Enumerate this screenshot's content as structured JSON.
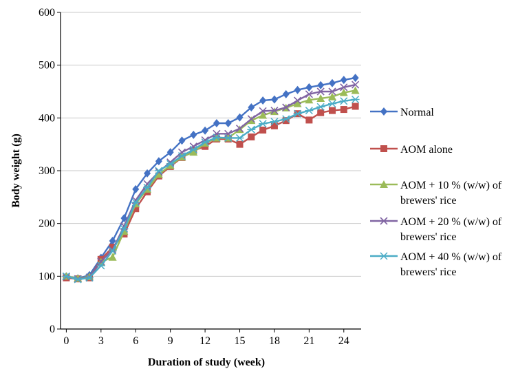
{
  "chart_data": {
    "type": "line",
    "title": "",
    "xlabel": "Duration of study (week)",
    "ylabel": "Body weight (g)",
    "xlim": [
      -0.5,
      25.5
    ],
    "ylim": [
      0,
      600
    ],
    "xticks": [
      0,
      3,
      6,
      9,
      12,
      15,
      18,
      21,
      24
    ],
    "yticks": [
      0,
      100,
      200,
      300,
      400,
      500,
      600
    ],
    "x_tick_labels": [
      "0",
      "3",
      "6",
      "9",
      "12",
      "15",
      "18",
      "21",
      "24"
    ],
    "y_tick_labels": [
      "0",
      "100",
      "200",
      "300",
      "400",
      "500",
      "600"
    ],
    "grid": "horizontal",
    "legend_position": "right",
    "x": [
      0,
      1,
      2,
      3,
      4,
      5,
      6,
      7,
      8,
      9,
      10,
      11,
      12,
      13,
      14,
      15,
      16,
      17,
      18,
      19,
      20,
      21,
      22,
      23,
      24,
      25
    ],
    "series": [
      {
        "name": "Normal",
        "legend_lines": [
          "Normal"
        ],
        "color": "#4472C4",
        "marker": "diamond",
        "values": [
          100,
          96,
          102,
          135,
          167,
          210,
          265,
          295,
          318,
          335,
          357,
          368,
          376,
          390,
          390,
          401,
          420,
          433,
          435,
          445,
          453,
          458,
          462,
          466,
          472,
          476
        ]
      },
      {
        "name": "AOM alone",
        "legend_lines": [
          "AOM alone"
        ],
        "color": "#C0504D",
        "marker": "square",
        "values": [
          97,
          95,
          97,
          132,
          155,
          180,
          228,
          260,
          290,
          308,
          325,
          338,
          346,
          360,
          360,
          350,
          364,
          377,
          385,
          395,
          408,
          396,
          410,
          414,
          416,
          422
        ]
      },
      {
        "name": "AOM + 10 %  (w/w) of brewers' rice",
        "legend_lines": [
          "AOM + 10 %  (w/w) of",
          "brewers' rice"
        ],
        "color": "#9BBB59",
        "marker": "triangle",
        "values": [
          100,
          96,
          99,
          127,
          136,
          185,
          237,
          265,
          293,
          310,
          326,
          335,
          352,
          362,
          362,
          378,
          395,
          405,
          412,
          419,
          427,
          434,
          437,
          440,
          448,
          452
        ]
      },
      {
        "name": "AOM + 20 % (w/w) of brewers' rice",
        "legend_lines": [
          "AOM + 20 % (w/w) of",
          "brewers' rice"
        ],
        "color": "#8064A2",
        "marker": "x",
        "values": [
          99,
          95,
          98,
          128,
          150,
          195,
          244,
          275,
          298,
          316,
          335,
          346,
          358,
          370,
          370,
          380,
          398,
          413,
          414,
          420,
          433,
          445,
          450,
          450,
          458,
          463
        ]
      },
      {
        "name": "AOM + 40 % (w/w) of brewers' rice",
        "legend_lines": [
          "AOM + 40 % (w/w) of",
          "brewers' rice"
        ],
        "color": "#4BACC6",
        "marker": "star",
        "values": [
          100,
          94,
          97,
          120,
          148,
          190,
          240,
          268,
          300,
          313,
          328,
          340,
          354,
          363,
          362,
          362,
          378,
          389,
          393,
          398,
          408,
          414,
          421,
          427,
          432,
          435
        ]
      }
    ]
  }
}
